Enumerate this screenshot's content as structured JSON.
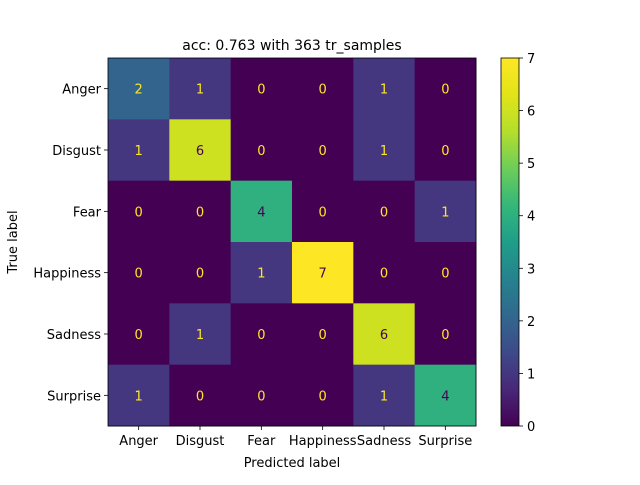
{
  "chart_data": {
    "type": "heatmap",
    "title": "acc: 0.763 with 363 tr_samples",
    "xlabel": "Predicted label",
    "ylabel": "True label",
    "x_categories": [
      "Anger",
      "Disgust",
      "Fear",
      "Happiness",
      "Sadness",
      "Surprise"
    ],
    "y_categories": [
      "Anger",
      "Disgust",
      "Fear",
      "Happiness",
      "Sadness",
      "Surprise"
    ],
    "matrix": [
      [
        2,
        1,
        0,
        0,
        1,
        0
      ],
      [
        1,
        6,
        0,
        0,
        1,
        0
      ],
      [
        0,
        0,
        4,
        0,
        0,
        1
      ],
      [
        0,
        0,
        1,
        7,
        0,
        0
      ],
      [
        0,
        1,
        0,
        0,
        6,
        0
      ],
      [
        1,
        0,
        0,
        0,
        1,
        4
      ]
    ],
    "colorbar": {
      "colormap": "viridis",
      "range": [
        0,
        7
      ],
      "ticks": [
        0,
        1,
        2,
        3,
        4,
        5,
        6,
        7
      ]
    },
    "text_colors": {
      "on_dark": "#fde725",
      "on_light": "#440154"
    },
    "grid": false
  }
}
